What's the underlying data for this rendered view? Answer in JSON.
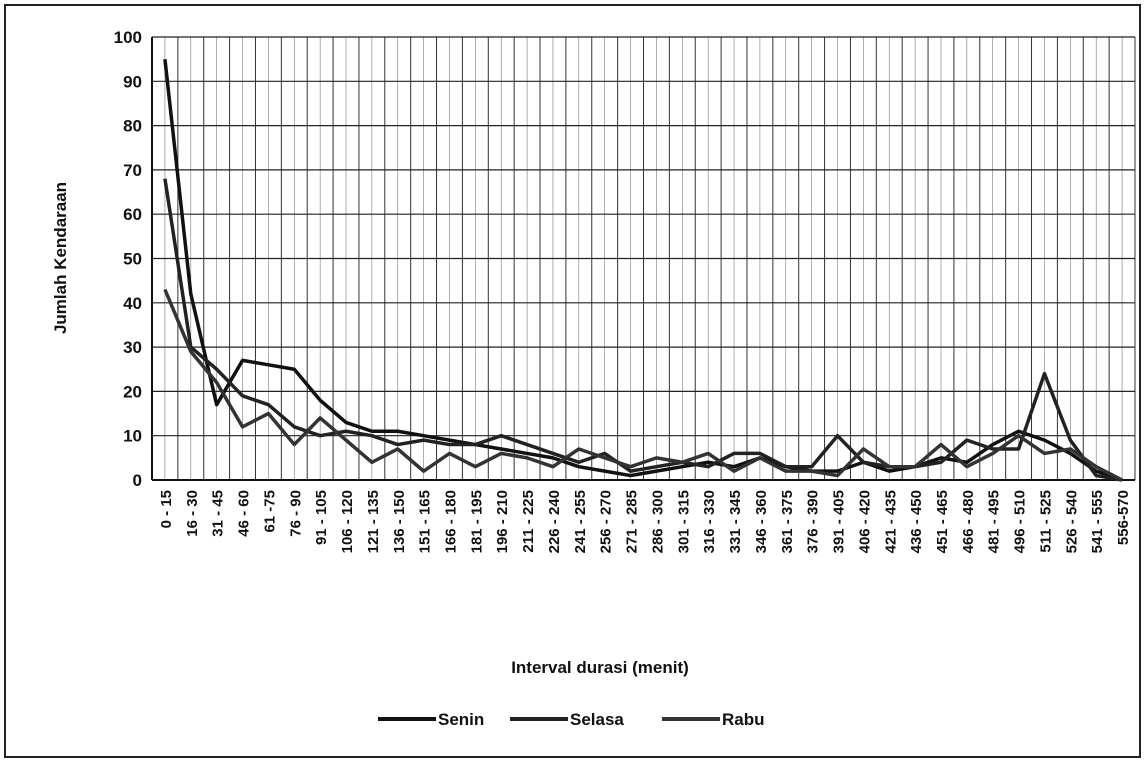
{
  "chart_data": {
    "type": "line",
    "x_label": "Interval durasi (menit)",
    "y_label": "Jumlah Kendaraan",
    "categories": [
      "0 - 15",
      "16 - 30",
      "31 - 45",
      "46 - 60",
      "61 -75",
      "76 - 90",
      "91 - 105",
      "106 - 120",
      "121 - 135",
      "136 - 150",
      "151 - 165",
      "166 - 180",
      "181 - 195",
      "196 - 210",
      "211 - 225",
      "226 - 240",
      "241 - 255",
      "256 - 270",
      "271 - 285",
      "286 - 300",
      "301 - 315",
      "316 - 330",
      "331 - 345",
      "346 - 360",
      "361 - 375",
      "376 - 390",
      "391 - 405",
      "406 - 420",
      "421 - 435",
      "436 - 450",
      "451 - 465",
      "466 - 480",
      "481 - 495",
      "496 - 510",
      "511 - 525",
      "526 - 540",
      "541 - 555",
      "556-570"
    ],
    "series": [
      {
        "name": "Senin",
        "color": "#111111",
        "values": [
          95,
          42,
          17,
          27,
          26,
          25,
          18,
          13,
          11,
          11,
          10,
          9,
          8,
          7,
          6,
          5,
          3,
          2,
          1,
          2,
          3,
          4,
          3,
          5,
          3,
          2,
          2,
          4,
          2,
          3,
          5,
          4,
          8,
          11,
          9,
          6,
          2,
          0
        ]
      },
      {
        "name": "Selasa",
        "color": "#222222",
        "values": [
          68,
          30,
          25,
          19,
          17,
          12,
          10,
          11,
          10,
          8,
          9,
          8,
          8,
          10,
          8,
          6,
          4,
          6,
          2,
          3,
          4,
          3,
          6,
          6,
          3,
          3,
          10,
          4,
          3,
          3,
          4,
          9,
          7,
          7,
          24,
          9,
          1,
          0
        ]
      },
      {
        "name": "Rabu",
        "color": "#333333",
        "values": [
          43,
          29,
          22,
          12,
          15,
          8,
          14,
          9,
          4,
          7,
          2,
          6,
          3,
          6,
          5,
          3,
          7,
          5,
          3,
          5,
          4,
          6,
          2,
          5,
          2,
          2,
          1,
          7,
          3,
          3,
          8,
          3,
          6,
          10,
          6,
          7,
          3,
          0
        ]
      }
    ],
    "ylim": [
      0,
      100
    ],
    "yticks": [
      0,
      10,
      20,
      30,
      40,
      50,
      60,
      70,
      80,
      90,
      100
    ],
    "grid": true,
    "legend": "bottom"
  }
}
